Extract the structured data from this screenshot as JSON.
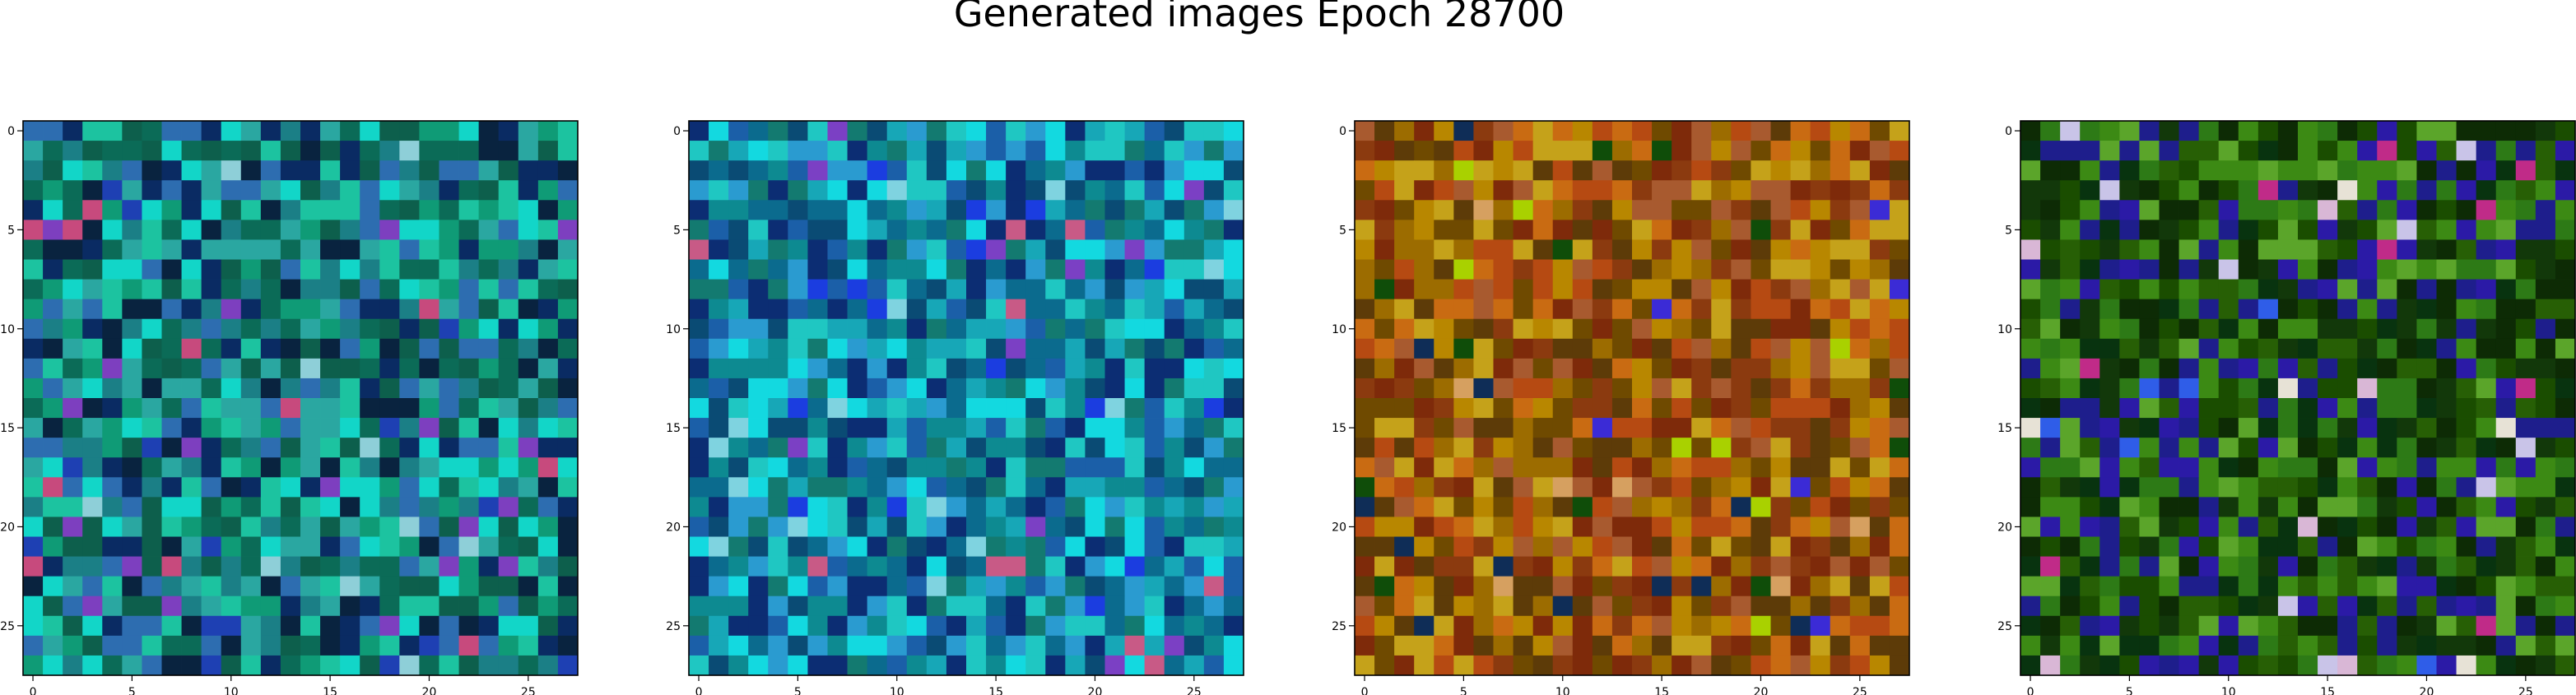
{
  "chart_data": {
    "type": "heatmap",
    "title": "Generated images Epoch 28700",
    "grid_size": 28,
    "xlim": [
      -0.5,
      27.5
    ],
    "ylim": [
      27.5,
      -0.5
    ],
    "x_ticks": [
      0,
      5,
      10,
      15,
      20,
      25
    ],
    "y_ticks": [
      0,
      5,
      10,
      15,
      20,
      25
    ],
    "grid": false,
    "panels": [
      {
        "palette": [
          "#0b6b57",
          "#0f9b76",
          "#1cc3a0",
          "#12d6c8",
          "#2aa7a1",
          "#1b7f86",
          "#0d5f4c",
          "#2d6db0",
          "#0a2b63",
          "#09233f"
        ],
        "highlight_colors": [
          "#7d3fbf",
          "#c74a7d",
          "#8ecfd8",
          "#1e40b3"
        ]
      },
      {
        "palette": [
          "#0d8a91",
          "#17a7b7",
          "#1fc7c2",
          "#13d9e0",
          "#1b5fa8",
          "#0c2d73",
          "#137a70",
          "#0a4b74",
          "#2a9bd0",
          "#0b6b8e"
        ],
        "highlight_colors": [
          "#7b40c4",
          "#c85a86",
          "#1b3de0",
          "#7fd3e0"
        ]
      },
      {
        "palette": [
          "#b88700",
          "#9c6c00",
          "#c96b12",
          "#8b3a0f",
          "#a85a2f",
          "#6f4a00",
          "#c5a21a",
          "#7e2a0a",
          "#b64a12",
          "#5d3b08"
        ],
        "highlight_colors": [
          "#3b2bd6",
          "#a9d100",
          "#0f2d57",
          "#0f4d09",
          "#d6a060"
        ]
      },
      {
        "palette": [
          "#1a4d00",
          "#275f05",
          "#3c8a14",
          "#0d2b05",
          "#08330f",
          "#2d7a16",
          "#5ba52a",
          "#12380a",
          "#1e1e8c",
          "#2b1aa6"
        ],
        "highlight_colors": [
          "#c02b88",
          "#d9b7d6",
          "#c9c4e8",
          "#e7e2d6",
          "#2f5de8"
        ]
      }
    ]
  }
}
